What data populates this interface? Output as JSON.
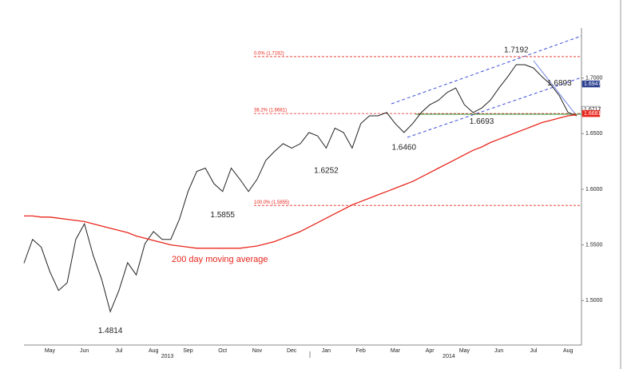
{
  "chart_data": {
    "type": "line",
    "categories": [
      null,
      null,
      null,
      "May",
      null,
      null,
      null,
      "Jun",
      null,
      null,
      null,
      "Jul",
      null,
      null,
      null,
      "Aug",
      null,
      null,
      null,
      "Sep",
      null,
      null,
      null,
      "Oct",
      null,
      null,
      null,
      "Nov",
      null,
      null,
      null,
      "Dec",
      null,
      null,
      null,
      "Jan",
      null,
      null,
      null,
      "Feb",
      null,
      null,
      null,
      "Mar",
      null,
      null,
      null,
      "Apr",
      null,
      null,
      null,
      "May",
      null,
      null,
      null,
      "Jun",
      null,
      null,
      null,
      "Jul",
      null,
      null,
      null,
      "Aug",
      null
    ],
    "year_labels": [
      "2013",
      "2014"
    ],
    "series": [
      {
        "color": "#222222",
        "values": [
          1.5336,
          1.555,
          1.548,
          1.526,
          1.509,
          1.516,
          1.555,
          1.569,
          1.541,
          1.519,
          1.49,
          1.509,
          1.534,
          1.523,
          1.551,
          1.562,
          1.555,
          1.555,
          1.573,
          1.598,
          1.616,
          1.619,
          1.605,
          1.598,
          1.619,
          1.609,
          1.598,
          1.609,
          1.626,
          1.634,
          1.641,
          1.637,
          1.641,
          1.651,
          1.648,
          1.637,
          1.655,
          1.651,
          1.637,
          1.659,
          1.666,
          1.666,
          1.669,
          1.659,
          1.651,
          1.659,
          1.669,
          1.676,
          1.68,
          1.687,
          1.691,
          1.676,
          1.669,
          1.673,
          1.68,
          1.691,
          1.701,
          1.712,
          1.712,
          1.709,
          1.701,
          1.694,
          1.684,
          1.669,
          1.666
        ]
      },
      {
        "name": "200 day moving average",
        "color": "#e8261c",
        "values": [
          1.576,
          1.576,
          1.575,
          1.575,
          1.574,
          1.573,
          1.572,
          1.571,
          1.569,
          1.567,
          1.565,
          1.563,
          1.561,
          1.558,
          1.556,
          1.554,
          1.552,
          1.55,
          1.549,
          1.548,
          1.547,
          1.547,
          1.547,
          1.547,
          1.547,
          1.547,
          1.548,
          1.549,
          1.551,
          1.553,
          1.556,
          1.559,
          1.562,
          1.566,
          1.57,
          1.574,
          1.578,
          1.582,
          1.586,
          1.589,
          1.592,
          1.595,
          1.598,
          1.601,
          1.604,
          1.607,
          1.611,
          1.615,
          1.619,
          1.623,
          1.627,
          1.631,
          1.635,
          1.638,
          1.642,
          1.645,
          1.648,
          1.651,
          1.654,
          1.657,
          1.66,
          1.662,
          1.664,
          1.666,
          1.667
        ]
      }
    ],
    "ylim": [
      1.46,
      1.745
    ],
    "yticks": [
      {
        "value": 1.5,
        "label": "1.5000"
      },
      {
        "value": 1.55,
        "label": "1.5500"
      },
      {
        "value": 1.6,
        "label": "1.6000"
      },
      {
        "value": 1.65,
        "label": "1.6500"
      },
      {
        "value": 1.7,
        "label": "1.7000"
      }
    ],
    "annotations": [
      {
        "label": "1.4814",
        "value": 1.4814,
        "index": 10
      },
      {
        "label": "1.5855",
        "value": 1.5855,
        "index": 23
      },
      {
        "label": "1.6252",
        "value": 1.6252,
        "index": 35
      },
      {
        "label": "1.6460",
        "value": 1.646,
        "index": 44
      },
      {
        "label": "1.6693",
        "value": 1.6693,
        "index": 53
      },
      {
        "label": "1.6893",
        "value": 1.6893,
        "index": 62
      },
      {
        "label": "1.7192",
        "value": 1.7192,
        "index": 57
      }
    ],
    "fib_levels": [
      {
        "label": "0.0% (1.7192)",
        "value": 1.7192
      },
      {
        "label": "38.2% (1.6681)",
        "value": 1.6681
      },
      {
        "label": "100.0% (1.5855)",
        "value": 1.5855
      }
    ],
    "fib_color": "#e8261c",
    "price_tags": [
      {
        "label": "1.6947",
        "value": 1.6947,
        "color": "#2a3f8f"
      },
      {
        "label": "1.6717",
        "value": 1.6717,
        "color": "#ffffff"
      },
      {
        "label": "1.6681",
        "value": 1.6681,
        "color": "#e8261c"
      }
    ]
  }
}
